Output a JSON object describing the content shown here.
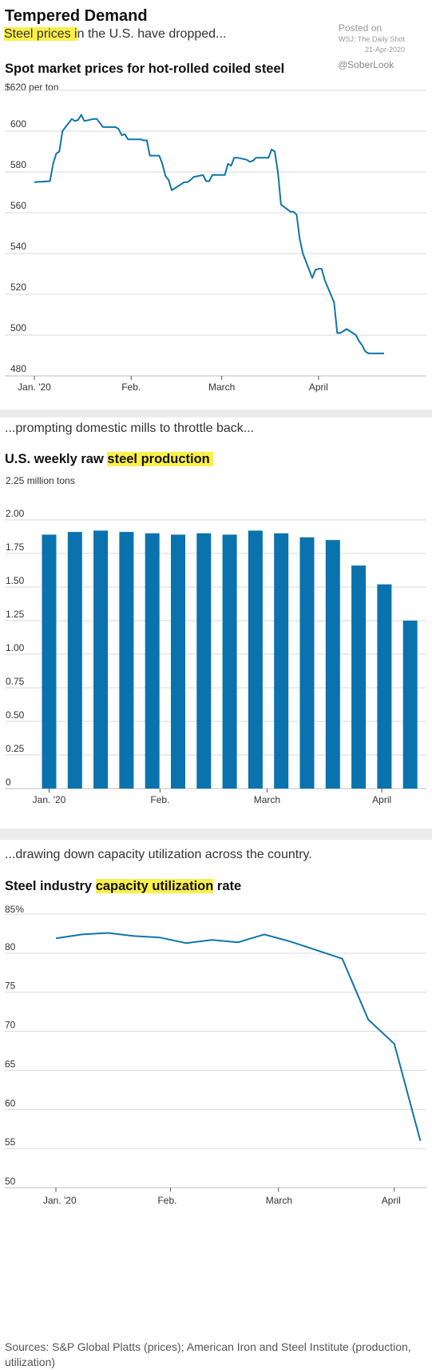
{
  "header": {
    "title": "Tempered Demand",
    "dek_highlight": "Steel prices i",
    "dek_rest": "n the U.S. have dropped...",
    "posted_label": "Posted on",
    "posted_source": "WSJ: The Daily Shot",
    "posted_date": "21-Apr-2020",
    "handle": "@SoberLook"
  },
  "panel2": {
    "dek": "...prompting domestic mills to throttle back..."
  },
  "panel3": {
    "dek": "...drawing down capacity utilization across the country."
  },
  "sources": "Sources: S&P Global Platts (prices); American Iron and Steel Institute (production, utilization)",
  "colors": {
    "line": "#0e76a8",
    "bar": "#0a73ad",
    "highlight": "#fbf04a",
    "grid": "#d9d9d9",
    "separator": "#ececec"
  },
  "chart_data": [
    {
      "type": "line",
      "title": "Spot market prices for hot-rolled coiled steel",
      "unit_label": "$620 per ton",
      "ylim": [
        480,
        620
      ],
      "yticks": [
        480,
        500,
        520,
        540,
        560,
        580,
        600
      ],
      "xlim": [
        "2019-12-30",
        "2020-04-24"
      ],
      "xticks": [
        {
          "label": "Jan. '20",
          "date": "2020-01-01"
        },
        {
          "label": "Feb.",
          "date": "2020-02-01"
        },
        {
          "label": "March",
          "date": "2020-03-01"
        },
        {
          "label": "April",
          "date": "2020-04-01"
        }
      ],
      "grid": true,
      "x": [
        "2020-01-01",
        "2020-01-06",
        "2020-01-07",
        "2020-01-08",
        "2020-01-09",
        "2020-01-10",
        "2020-01-13",
        "2020-01-14",
        "2020-01-15",
        "2020-01-16",
        "2020-01-17",
        "2020-01-20",
        "2020-01-21",
        "2020-01-22",
        "2020-01-23",
        "2020-01-24",
        "2020-01-27",
        "2020-01-28",
        "2020-01-29",
        "2020-01-30",
        "2020-01-31",
        "2020-02-03",
        "2020-02-04",
        "2020-02-05",
        "2020-02-06",
        "2020-02-07",
        "2020-02-10",
        "2020-02-11",
        "2020-02-12",
        "2020-02-13",
        "2020-02-14",
        "2020-02-17",
        "2020-02-18",
        "2020-02-19",
        "2020-02-20",
        "2020-02-21",
        "2020-02-24",
        "2020-02-25",
        "2020-02-26",
        "2020-02-27",
        "2020-02-28",
        "2020-03-02",
        "2020-03-03",
        "2020-03-04",
        "2020-03-05",
        "2020-03-06",
        "2020-03-09",
        "2020-03-10",
        "2020-03-11",
        "2020-03-12",
        "2020-03-13",
        "2020-03-16",
        "2020-03-17",
        "2020-03-18",
        "2020-03-19",
        "2020-03-20",
        "2020-03-23",
        "2020-03-24",
        "2020-03-25",
        "2020-03-26",
        "2020-03-27",
        "2020-03-30",
        "2020-03-31",
        "2020-04-01",
        "2020-04-02",
        "2020-04-03",
        "2020-04-06",
        "2020-04-07",
        "2020-04-08",
        "2020-04-09",
        "2020-04-10",
        "2020-04-13",
        "2020-04-14",
        "2020-04-15",
        "2020-04-16",
        "2020-04-17",
        "2020-04-20",
        "2020-04-21",
        "2020-04-22"
      ],
      "values": [
        575,
        575.5,
        584,
        589,
        590,
        600,
        606,
        605,
        605.5,
        608,
        605,
        606,
        606,
        604,
        602,
        602,
        602,
        601,
        598,
        598.5,
        596,
        596,
        596,
        595.5,
        595.5,
        588,
        588,
        584,
        578,
        576,
        571,
        574,
        575,
        575,
        576,
        577.5,
        578.5,
        575.5,
        575.5,
        578.5,
        578.5,
        578.5,
        584,
        583,
        587,
        587,
        586,
        585,
        585.5,
        587,
        587,
        587,
        591,
        590,
        580,
        564,
        560.5,
        560.5,
        559,
        547,
        540,
        528,
        532,
        532.5,
        532.5,
        527,
        516,
        501,
        501,
        502,
        503,
        500,
        497,
        495,
        492,
        491,
        491,
        491,
        491
      ]
    },
    {
      "type": "bar",
      "title": "U.S. weekly raw steel production",
      "title_plain": "U.S. weekly raw ",
      "title_highlight": "steel production",
      "unit_label": "2.25 million tons",
      "ylim": [
        0,
        2.25
      ],
      "yticks": [
        "0",
        "0.25",
        "0.50",
        "0.75",
        "1.00",
        "1.25",
        "1.50",
        "1.75",
        "2.00"
      ],
      "xticks": [
        {
          "label": "Jan. '20",
          "bar": 0
        },
        {
          "label": "Feb.",
          "bar": 4.3
        },
        {
          "label": "March",
          "bar": 8.45
        },
        {
          "label": "April",
          "bar": 12.9
        }
      ],
      "grid": true,
      "values": [
        1.89,
        1.91,
        1.92,
        1.91,
        1.9,
        1.89,
        1.9,
        1.89,
        1.92,
        1.9,
        1.87,
        1.85,
        1.66,
        1.52,
        1.25
      ]
    },
    {
      "type": "line",
      "title": "Steel industry capacity utilization rate",
      "title_plain": "Steel industry ",
      "title_highlight": "capacity utilization",
      "title_rest": " rate",
      "unit_label": "85%",
      "ylim": [
        50,
        85
      ],
      "yticks": [
        50,
        55,
        60,
        65,
        70,
        75,
        80
      ],
      "xticks": [
        {
          "label": "Jan. '20",
          "week": 0
        },
        {
          "label": "Feb.",
          "week": 4.4
        },
        {
          "label": "March",
          "week": 8.55
        },
        {
          "label": "April",
          "week": 13
        }
      ],
      "grid": true,
      "values": [
        81.9,
        82.4,
        82.6,
        82.2,
        82.0,
        81.3,
        81.7,
        81.4,
        82.4,
        81.5,
        80.4,
        79.3,
        71.5,
        68.4,
        56.0
      ]
    }
  ]
}
